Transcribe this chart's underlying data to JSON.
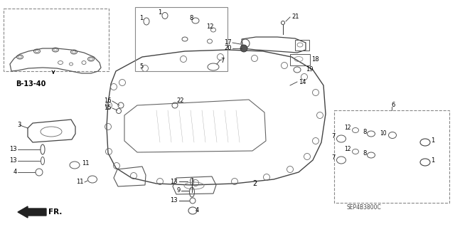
{
  "bg_color": "#ffffff",
  "lc": "#333333",
  "dc": "#888888",
  "fig_width": 6.4,
  "fig_height": 3.19,
  "dpi": 100,
  "diagram_code": "SEP4B3800C",
  "ref_label": "B-13-40",
  "fr_label": "FR."
}
